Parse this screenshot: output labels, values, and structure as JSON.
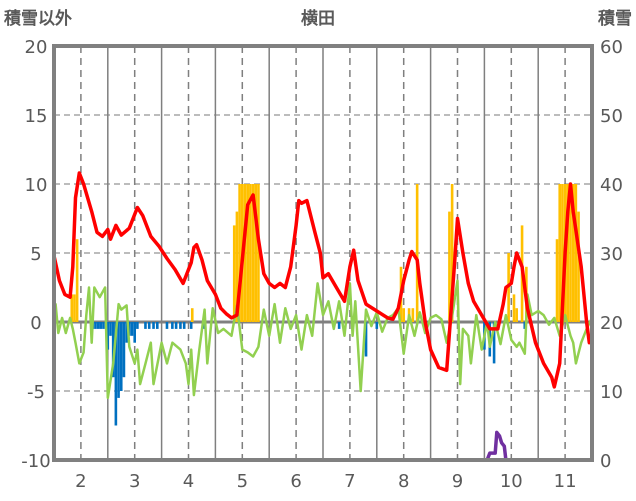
{
  "chart_data": {
    "type": "bar+line",
    "title": "横田",
    "ylabel_left": "積雪以外",
    "ylabel_right": "積雪",
    "xlim": [
      1.5,
      11.5
    ],
    "ylim_left": [
      -10,
      20
    ],
    "ylim_right": [
      0,
      60
    ],
    "x_ticks": [
      "2",
      "3",
      "4",
      "5",
      "6",
      "7",
      "8",
      "9",
      "10",
      "11"
    ],
    "y_ticks_left": [
      "20",
      "15",
      "10",
      "5",
      "0",
      "-5",
      "-10"
    ],
    "y_ticks_right": [
      "60",
      "50",
      "40",
      "30",
      "20",
      "10",
      "0"
    ],
    "grid": true,
    "colors": {
      "red": "#ff0000",
      "green": "#92d050",
      "yellow": "#ffc000",
      "blue": "#0070c0",
      "purple": "#7030a0",
      "frame": "#808080"
    },
    "bars_positive": [
      [
        1.83,
        2
      ],
      [
        1.88,
        2
      ],
      [
        1.93,
        6
      ],
      [
        4.07,
        1
      ],
      [
        4.85,
        7
      ],
      [
        4.9,
        8
      ],
      [
        4.95,
        10
      ],
      [
        5.0,
        10
      ],
      [
        5.05,
        10
      ],
      [
        5.1,
        10
      ],
      [
        5.15,
        10
      ],
      [
        5.2,
        10
      ],
      [
        5.25,
        10
      ],
      [
        5.3,
        10
      ],
      [
        7.95,
        4
      ],
      [
        8.0,
        1
      ],
      [
        8.1,
        1
      ],
      [
        8.17,
        1
      ],
      [
        8.25,
        10
      ],
      [
        8.85,
        8
      ],
      [
        8.9,
        10
      ],
      [
        9.95,
        5
      ],
      [
        10.05,
        2
      ],
      [
        10.1,
        1
      ],
      [
        10.2,
        7
      ],
      [
        10.28,
        4
      ],
      [
        10.85,
        6
      ],
      [
        10.9,
        10
      ],
      [
        10.95,
        10
      ],
      [
        11.0,
        10
      ],
      [
        11.05,
        10
      ],
      [
        11.1,
        10
      ],
      [
        11.15,
        10
      ],
      [
        11.2,
        10
      ],
      [
        11.25,
        8
      ]
    ],
    "bars_negative": [
      [
        2.22,
        -0.5
      ],
      [
        2.27,
        -0.5
      ],
      [
        2.32,
        -0.5
      ],
      [
        2.37,
        -0.5
      ],
      [
        2.42,
        -0.5
      ],
      [
        2.5,
        -2
      ],
      [
        2.55,
        -1
      ],
      [
        2.6,
        -4
      ],
      [
        2.65,
        -7.5
      ],
      [
        2.7,
        -5.5
      ],
      [
        2.75,
        -5
      ],
      [
        2.8,
        -4
      ],
      [
        2.85,
        -1.5
      ],
      [
        2.9,
        -1
      ],
      [
        2.95,
        -1
      ],
      [
        3.0,
        -1.5
      ],
      [
        3.05,
        -0.5
      ],
      [
        3.2,
        -0.5
      ],
      [
        3.27,
        -0.5
      ],
      [
        3.35,
        -0.5
      ],
      [
        3.42,
        -0.5
      ],
      [
        3.6,
        -0.5
      ],
      [
        3.7,
        -0.5
      ],
      [
        3.77,
        -0.5
      ],
      [
        3.85,
        -0.5
      ],
      [
        3.92,
        -0.5
      ],
      [
        4.05,
        -0.5
      ],
      [
        4.3,
        -0.5
      ],
      [
        6.8,
        -0.5
      ],
      [
        7.3,
        -2.5
      ],
      [
        7.5,
        -0.5
      ],
      [
        9.5,
        -2
      ],
      [
        9.6,
        -2.5
      ],
      [
        9.68,
        -3
      ],
      [
        10.25,
        -0.5
      ]
    ],
    "series": [
      {
        "name": "red",
        "axis": "left",
        "points": [
          [
            1.5,
            4.8
          ],
          [
            1.6,
            3
          ],
          [
            1.7,
            2
          ],
          [
            1.8,
            1.8
          ],
          [
            1.85,
            4
          ],
          [
            1.9,
            9
          ],
          [
            1.97,
            10.8
          ],
          [
            2.05,
            10
          ],
          [
            2.2,
            8
          ],
          [
            2.3,
            6.5
          ],
          [
            2.4,
            6.2
          ],
          [
            2.5,
            6.7
          ],
          [
            2.55,
            6
          ],
          [
            2.65,
            7
          ],
          [
            2.75,
            6.3
          ],
          [
            2.9,
            6.8
          ],
          [
            3.0,
            7.8
          ],
          [
            3.05,
            8.3
          ],
          [
            3.15,
            7.7
          ],
          [
            3.3,
            6.2
          ],
          [
            3.45,
            5.5
          ],
          [
            3.6,
            4.6
          ],
          [
            3.75,
            3.8
          ],
          [
            3.9,
            2.8
          ],
          [
            4.05,
            4.3
          ],
          [
            4.1,
            5.4
          ],
          [
            4.15,
            5.6
          ],
          [
            4.25,
            4.5
          ],
          [
            4.35,
            3
          ],
          [
            4.5,
            2
          ],
          [
            4.6,
            1
          ],
          [
            4.7,
            0.6
          ],
          [
            4.8,
            0.3
          ],
          [
            4.9,
            0.5
          ],
          [
            5.0,
            4.5
          ],
          [
            5.1,
            8.5
          ],
          [
            5.2,
            9.2
          ],
          [
            5.3,
            6
          ],
          [
            5.4,
            3.5
          ],
          [
            5.5,
            2.8
          ],
          [
            5.6,
            2.5
          ],
          [
            5.7,
            2.8
          ],
          [
            5.8,
            2.5
          ],
          [
            5.9,
            4
          ],
          [
            6.0,
            7
          ],
          [
            6.05,
            8.8
          ],
          [
            6.1,
            8.6
          ],
          [
            6.2,
            8.8
          ],
          [
            6.35,
            6.5
          ],
          [
            6.45,
            5
          ],
          [
            6.5,
            3.2
          ],
          [
            6.6,
            3.5
          ],
          [
            6.75,
            2.5
          ],
          [
            6.9,
            1.5
          ],
          [
            7.0,
            4
          ],
          [
            7.07,
            5.2
          ],
          [
            7.15,
            3
          ],
          [
            7.3,
            1.3
          ],
          [
            7.5,
            0.8
          ],
          [
            7.7,
            0.3
          ],
          [
            7.8,
            0.2
          ],
          [
            7.9,
            1
          ],
          [
            8.0,
            3
          ],
          [
            8.1,
            4.5
          ],
          [
            8.15,
            5.1
          ],
          [
            8.25,
            4.5
          ],
          [
            8.3,
            2.8
          ],
          [
            8.4,
            0
          ],
          [
            8.5,
            -2
          ],
          [
            8.65,
            -3.3
          ],
          [
            8.8,
            -3.5
          ],
          [
            8.95,
            4.5
          ],
          [
            9.0,
            7.5
          ],
          [
            9.1,
            5
          ],
          [
            9.2,
            2.8
          ],
          [
            9.3,
            1.5
          ],
          [
            9.45,
            0.5
          ],
          [
            9.6,
            -0.5
          ],
          [
            9.75,
            -0.5
          ],
          [
            9.85,
            1.3
          ],
          [
            9.9,
            2.5
          ],
          [
            10.0,
            2.8
          ],
          [
            10.05,
            4
          ],
          [
            10.1,
            5
          ],
          [
            10.2,
            4
          ],
          [
            10.3,
            1
          ],
          [
            10.45,
            -1.5
          ],
          [
            10.6,
            -3
          ],
          [
            10.75,
            -4
          ],
          [
            10.8,
            -4.7
          ],
          [
            10.9,
            -3
          ],
          [
            11.0,
            5
          ],
          [
            11.05,
            8
          ],
          [
            11.1,
            10
          ],
          [
            11.15,
            8
          ],
          [
            11.3,
            4
          ],
          [
            11.4,
            0
          ],
          [
            11.45,
            -1.5
          ],
          [
            11.5,
            -1.4
          ]
        ]
      },
      {
        "name": "green",
        "axis": "left",
        "points": [
          [
            1.5,
            0
          ],
          [
            1.53,
            1.3
          ],
          [
            1.58,
            -0.8
          ],
          [
            1.65,
            0.3
          ],
          [
            1.72,
            -0.8
          ],
          [
            1.8,
            0.3
          ],
          [
            1.85,
            -0.5
          ],
          [
            1.9,
            -1.5
          ],
          [
            1.97,
            -3
          ],
          [
            2.05,
            -2.2
          ],
          [
            2.1,
            0.5
          ],
          [
            2.15,
            2.5
          ],
          [
            2.2,
            -1.5
          ],
          [
            2.25,
            2.5
          ],
          [
            2.35,
            1.8
          ],
          [
            2.45,
            2.5
          ],
          [
            2.5,
            -5.5
          ],
          [
            2.6,
            -3
          ],
          [
            2.7,
            1.3
          ],
          [
            2.75,
            0.9
          ],
          [
            2.85,
            1.2
          ],
          [
            2.9,
            -1.8
          ],
          [
            3.0,
            -3
          ],
          [
            3.05,
            -2
          ],
          [
            3.1,
            -4.5
          ],
          [
            3.2,
            -3
          ],
          [
            3.3,
            -1.5
          ],
          [
            3.35,
            -4.5
          ],
          [
            3.5,
            -1.5
          ],
          [
            3.6,
            -3
          ],
          [
            3.7,
            -1.5
          ],
          [
            3.85,
            -2
          ],
          [
            3.95,
            -3
          ],
          [
            4.0,
            -4.5
          ],
          [
            4.05,
            -2
          ],
          [
            4.1,
            -5.3
          ],
          [
            4.2,
            -2
          ],
          [
            4.3,
            0.9
          ],
          [
            4.35,
            -3
          ],
          [
            4.45,
            1
          ],
          [
            4.55,
            -0.8
          ],
          [
            4.65,
            -0.5
          ],
          [
            4.8,
            -1
          ],
          [
            4.9,
            1.2
          ],
          [
            5.0,
            -2
          ],
          [
            5.1,
            -2.2
          ],
          [
            5.2,
            -2.5
          ],
          [
            5.3,
            -1.8
          ],
          [
            5.4,
            0.9
          ],
          [
            5.5,
            -1
          ],
          [
            5.6,
            1.3
          ],
          [
            5.7,
            -1.5
          ],
          [
            5.8,
            1
          ],
          [
            5.9,
            -0.5
          ],
          [
            6.0,
            0.5
          ],
          [
            6.1,
            -2
          ],
          [
            6.2,
            0.5
          ],
          [
            6.3,
            -1
          ],
          [
            6.4,
            2.8
          ],
          [
            6.5,
            0.5
          ],
          [
            6.6,
            1.5
          ],
          [
            6.7,
            -0.5
          ],
          [
            6.8,
            1.5
          ],
          [
            6.9,
            -1
          ],
          [
            7.0,
            2.8
          ],
          [
            7.05,
            -1
          ],
          [
            7.1,
            1.5
          ],
          [
            7.2,
            -5
          ],
          [
            7.3,
            0.9
          ],
          [
            7.4,
            -0.3
          ],
          [
            7.5,
            0.7
          ],
          [
            7.6,
            -0.7
          ],
          [
            7.7,
            0.3
          ],
          [
            7.8,
            0.5
          ],
          [
            7.9,
            1
          ],
          [
            8.0,
            -2.3
          ],
          [
            8.1,
            0.5
          ],
          [
            8.2,
            -1
          ],
          [
            8.3,
            0.7
          ],
          [
            8.4,
            -0.8
          ],
          [
            8.5,
            0.3
          ],
          [
            8.6,
            0.5
          ],
          [
            8.7,
            0.2
          ],
          [
            8.8,
            -1.5
          ],
          [
            8.9,
            0.4
          ],
          [
            9.0,
            3
          ],
          [
            9.05,
            -4.5
          ],
          [
            9.1,
            -0.5
          ],
          [
            9.2,
            -1
          ],
          [
            9.25,
            -3
          ],
          [
            9.35,
            0.5
          ],
          [
            9.45,
            -2
          ],
          [
            9.55,
            0
          ],
          [
            9.6,
            -1.8
          ],
          [
            9.7,
            0
          ],
          [
            9.8,
            -1.6
          ],
          [
            9.9,
            0.5
          ],
          [
            10.0,
            -1.3
          ],
          [
            10.1,
            -1.8
          ],
          [
            10.15,
            -1.5
          ],
          [
            10.25,
            -2.3
          ],
          [
            10.3,
            2
          ],
          [
            10.38,
            0.5
          ],
          [
            10.5,
            0.8
          ],
          [
            10.6,
            0.5
          ],
          [
            10.7,
            -0.2
          ],
          [
            10.8,
            0.3
          ],
          [
            10.9,
            -1
          ],
          [
            11.0,
            0.5
          ],
          [
            11.1,
            -1
          ],
          [
            11.15,
            -1.5
          ],
          [
            11.2,
            -3
          ],
          [
            11.3,
            -1.5
          ],
          [
            11.4,
            -0.5
          ],
          [
            11.5,
            0.3
          ]
        ]
      },
      {
        "name": "purple",
        "axis": "right",
        "points": [
          [
            1.5,
            0
          ],
          [
            9.55,
            0
          ],
          [
            9.6,
            1
          ],
          [
            9.7,
            1
          ],
          [
            9.73,
            4
          ],
          [
            9.78,
            3.5
          ],
          [
            9.82,
            2.5
          ],
          [
            9.87,
            2
          ],
          [
            9.9,
            0
          ],
          [
            11.5,
            0
          ]
        ]
      }
    ]
  }
}
